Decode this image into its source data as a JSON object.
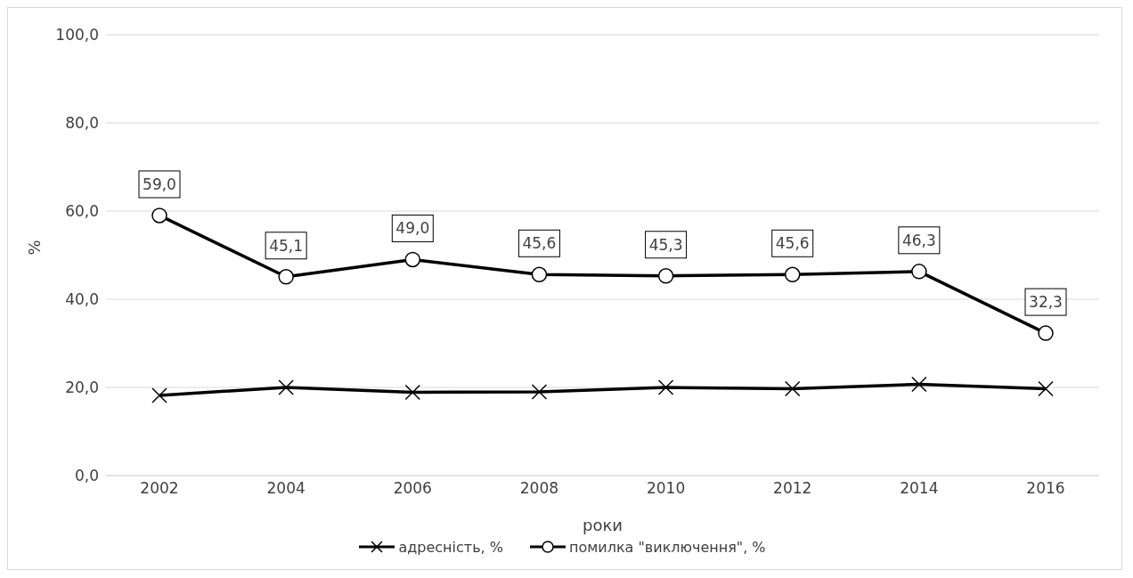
{
  "chart_data": {
    "type": "line",
    "xlabel": "роки",
    "ylabel": "%",
    "categories": [
      "2002",
      "2004",
      "2006",
      "2008",
      "2010",
      "2012",
      "2014",
      "2016"
    ],
    "series": [
      {
        "name": "адресність, %",
        "color": "#000000",
        "marker": "cross",
        "values": [
          18.2,
          20.0,
          18.9,
          19.0,
          20.0,
          19.7,
          20.7,
          19.7
        ]
      },
      {
        "name": "помилка \"виключення\", %",
        "color": "#000000",
        "marker": "circle",
        "values": [
          59.0,
          45.1,
          49.0,
          45.6,
          45.3,
          45.6,
          46.3,
          32.3
        ],
        "value_labels": [
          "59,0",
          "45,1",
          "49,0",
          "45,6",
          "45,3",
          "45,6",
          "46,3",
          "32,3"
        ]
      }
    ],
    "ylim": [
      0,
      100
    ],
    "yticks": [
      {
        "value": 0,
        "label": "0,0"
      },
      {
        "value": 20,
        "label": "20,0"
      },
      {
        "value": 40,
        "label": "40,0"
      },
      {
        "value": 60,
        "label": "60,0"
      },
      {
        "value": 80,
        "label": "80,0"
      },
      {
        "value": 100,
        "label": "100,0"
      }
    ],
    "grid": "y",
    "legend": "bottom",
    "line_style": "solid"
  }
}
